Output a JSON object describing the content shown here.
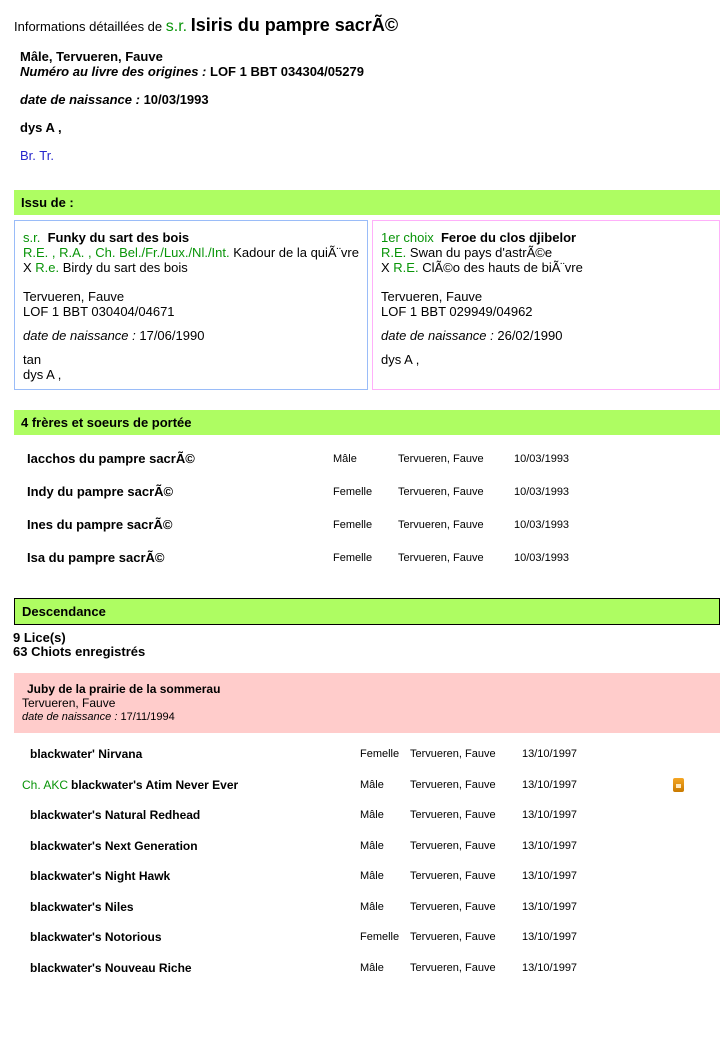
{
  "colors": {
    "banner_green": "#aefd62",
    "text_green": "#089408",
    "link_blue": "#2626cc",
    "father_box_border": "#9abcf8",
    "mother_box_border": "#ffb0fa",
    "litter_pink": "#ffcccb",
    "icon_orange": "#e8920a"
  },
  "header": {
    "prefix": "Informations détaillées de ",
    "honorific": "s.r.",
    "dog_name": "Isiris du pampre sacrÃ©"
  },
  "subject": {
    "sex_variety_color": "Mâle, Tervueren, Fauve",
    "registry_label": "Numéro au livre des origines : ",
    "registry_value": "LOF 1 BBT 034304/05279",
    "birth_label": "date de naissance : ",
    "birth_value": "10/03/1993",
    "health": "dys A ,",
    "titles_link": "Br. Tr."
  },
  "issu_de": {
    "banner": "Issu de :",
    "father": {
      "prefix": "s.r.",
      "name": "Funky du sart des bois",
      "sire_titles": "R.E. , R.A. , Ch. Bel./Fr./Lux./Nl./Int.",
      "sire_name": " Kadour de la quiÃ¨vre",
      "cross": "X ",
      "dam_titles": "R.e.",
      "dam_name": " Birdy du sart des bois",
      "variety_color": "Tervueren, Fauve",
      "registry": "LOF 1 BBT 030404/04671",
      "birth_label": "date de naissance : ",
      "birth_value": "17/06/1990",
      "note1": "tan",
      "note2": "dys A ,"
    },
    "mother": {
      "prefix": "1er choix",
      "name": "Feroe du clos djibelor",
      "sire_titles": "R.E.",
      "sire_name": " Swan du pays d'astrÃ©e",
      "cross": "X ",
      "dam_titles": "R.E.",
      "dam_name": " ClÃ©o des hauts de biÃ¨vre",
      "variety_color": "Tervueren, Fauve",
      "registry": "LOF 1 BBT 029949/04962",
      "birth_label": "date de naissance : ",
      "birth_value": "26/02/1990",
      "note1": "dys A ,",
      "note2": ""
    }
  },
  "siblings": {
    "banner": "4 frères et soeurs de portée",
    "rows": [
      {
        "name": "Iacchos du pampre sacrÃ©",
        "sex": "Mâle",
        "variety": "Tervueren, Fauve",
        "birth": "10/03/1993"
      },
      {
        "name": "Indy du pampre sacrÃ©",
        "sex": "Femelle",
        "variety": "Tervueren, Fauve",
        "birth": "10/03/1993"
      },
      {
        "name": "Ines du pampre sacrÃ©",
        "sex": "Femelle",
        "variety": "Tervueren, Fauve",
        "birth": "10/03/1993"
      },
      {
        "name": "Isa du pampre sacrÃ©",
        "sex": "Femelle",
        "variety": "Tervueren, Fauve",
        "birth": "10/03/1993"
      }
    ]
  },
  "descendance": {
    "banner": "Descendance",
    "dams_count": "9 Lice(s)",
    "puppies_count": "63 Chiots enregistrés",
    "litter": {
      "dam_name": "Juby de la prairie de la sommerau",
      "variety": "Tervueren, Fauve",
      "birth_label": "date de naissance : ",
      "birth_value": "17/11/1994"
    },
    "rows": [
      {
        "prefix": "",
        "name": "blackwater' Nirvana",
        "sex": "Femelle",
        "variety": "Tervueren, Fauve",
        "birth": "13/10/1997"
      },
      {
        "prefix": "Ch. AKC",
        "name": "blackwater's Atim Never Ever",
        "sex": "Mâle",
        "variety": "Tervueren, Fauve",
        "birth": "13/10/1997"
      },
      {
        "prefix": "",
        "name": "blackwater's Natural Redhead",
        "sex": "Mâle",
        "variety": "Tervueren, Fauve",
        "birth": "13/10/1997"
      },
      {
        "prefix": "",
        "name": "blackwater's Next Generation",
        "sex": "Mâle",
        "variety": "Tervueren, Fauve",
        "birth": "13/10/1997"
      },
      {
        "prefix": "",
        "name": "blackwater's Night Hawk",
        "sex": "Mâle",
        "variety": "Tervueren, Fauve",
        "birth": "13/10/1997"
      },
      {
        "prefix": "",
        "name": "blackwater's Niles",
        "sex": "Mâle",
        "variety": "Tervueren, Fauve",
        "birth": "13/10/1997"
      },
      {
        "prefix": "",
        "name": "blackwater's Notorious",
        "sex": "Femelle",
        "variety": "Tervueren, Fauve",
        "birth": "13/10/1997"
      },
      {
        "prefix": "",
        "name": "blackwater's Nouveau Riche",
        "sex": "Mâle",
        "variety": "Tervueren, Fauve",
        "birth": "13/10/1997"
      }
    ]
  }
}
